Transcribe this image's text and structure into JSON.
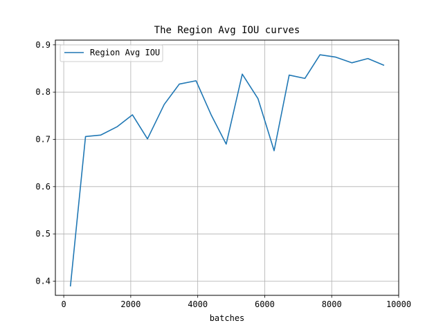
{
  "chart_data": {
    "type": "line",
    "title": "The Region Avg IOU curves",
    "xlabel": "batches",
    "ylabel": "",
    "xlim": [
      -250,
      10000
    ],
    "ylim": [
      0.37,
      0.91
    ],
    "xticks": [
      0,
      2000,
      4000,
      6000,
      8000,
      10000
    ],
    "yticks": [
      0.4,
      0.5,
      0.6,
      0.7,
      0.8,
      0.9
    ],
    "xtick_labels": [
      "0",
      "2000",
      "4000",
      "6000",
      "8000",
      "10000"
    ],
    "ytick_labels": [
      "0.4",
      "0.5",
      "0.6",
      "0.7",
      "0.8",
      "0.9"
    ],
    "grid": true,
    "legend_position": "top-left",
    "series": [
      {
        "name": "Region Avg IOU",
        "color": "#1f77b4",
        "x": [
          200,
          650,
          1100,
          1600,
          2050,
          2500,
          3000,
          3450,
          3950,
          4400,
          4850,
          5330,
          5800,
          6280,
          6730,
          7200,
          7650,
          8120,
          8600,
          9080,
          9550
        ],
        "y": [
          0.39,
          0.706,
          0.709,
          0.727,
          0.752,
          0.701,
          0.774,
          0.817,
          0.824,
          0.752,
          0.69,
          0.838,
          0.786,
          0.676,
          0.836,
          0.829,
          0.879,
          0.874,
          0.862,
          0.871,
          0.857
        ]
      }
    ]
  }
}
